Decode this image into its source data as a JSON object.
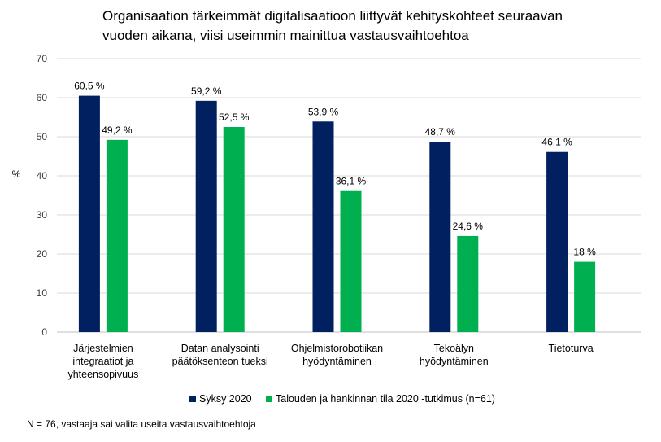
{
  "chart_data": {
    "type": "bar",
    "title_lines": [
      "Organisaation tärkeimmät digitalisaatioon liittyvät kehityskohteet seuraavan",
      "vuoden aikana, viisi useimmin mainittua vastausvaihtoehtoa"
    ],
    "ylabel": "%",
    "ylim": [
      0,
      70
    ],
    "yticks": [
      0,
      10,
      20,
      30,
      40,
      50,
      60,
      70
    ],
    "grid": true,
    "legend_position": "bottom",
    "categories": [
      [
        "Järjestelmien",
        "integraatiot ja",
        "yhteensopivuus"
      ],
      [
        "Datan analysointi",
        "päätöksenteon tueksi"
      ],
      [
        "Ohjelmistorobotiikan",
        "hyödyntäminen"
      ],
      [
        "Tekoälyn",
        "hyödyntäminen"
      ],
      [
        "Tietoturva"
      ]
    ],
    "series": [
      {
        "name": "Syksy 2020",
        "color": "#002060",
        "values": [
          60.5,
          59.2,
          53.9,
          48.7,
          46.1
        ],
        "labels": [
          "60,5 %",
          "59,2 %",
          "53,9 %",
          "48,7 %",
          "46,1 %"
        ]
      },
      {
        "name": "Talouden ja hankinnan tila 2020 -tutkimus (n=61)",
        "color": "#00B050",
        "values": [
          49.2,
          52.5,
          36.1,
          24.6,
          18
        ],
        "labels": [
          "49,2 %",
          "52,5 %",
          "36,1 %",
          "24,6 %",
          "18 %"
        ]
      }
    ],
    "footnote": "N = 76, vastaaja sai valita useita vastausvaihtoehtoja"
  }
}
